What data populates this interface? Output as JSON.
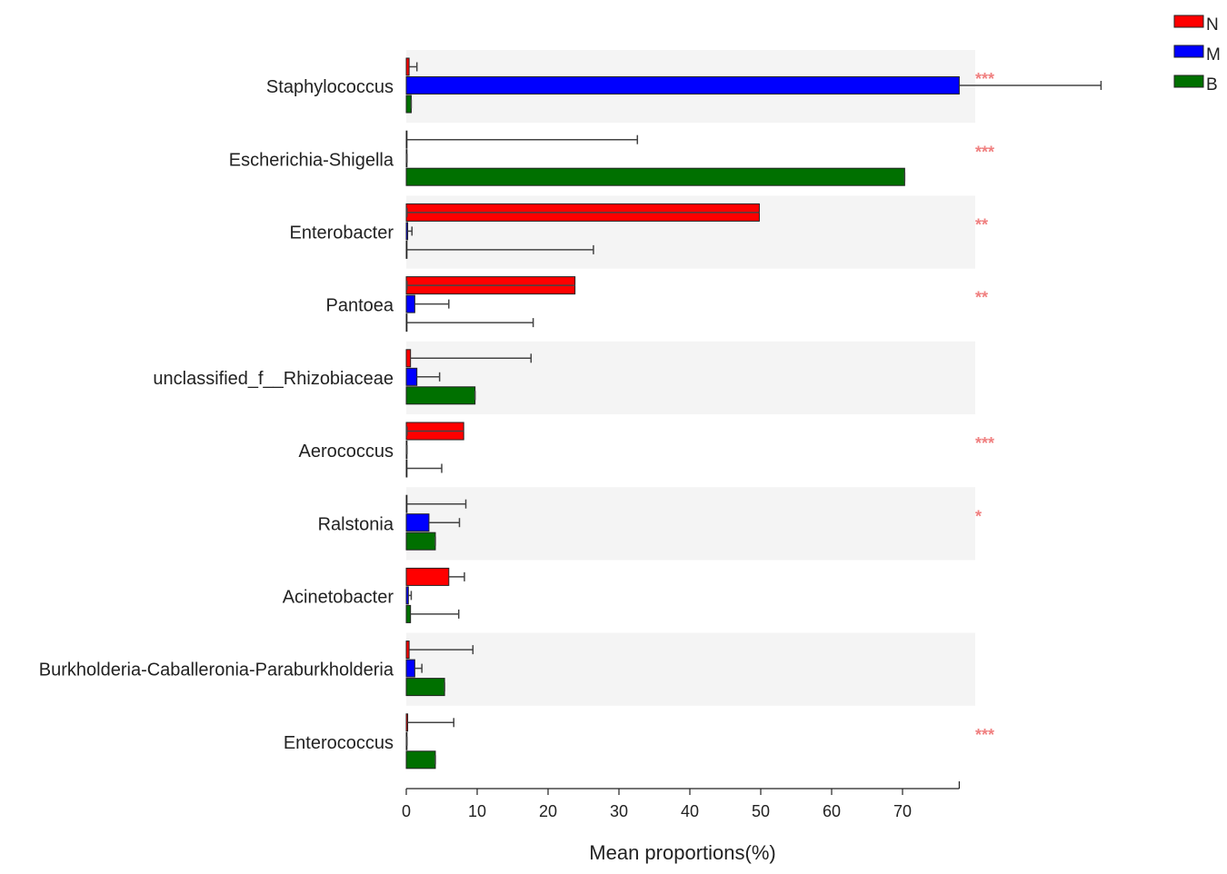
{
  "chart_data": {
    "type": "bar",
    "orientation": "horizontal",
    "xlabel": "Mean proportions(%)",
    "ylabel": "",
    "xlim": [
      0,
      78
    ],
    "xticks": [
      0,
      10,
      20,
      30,
      40,
      50,
      60,
      70
    ],
    "grid": false,
    "legend_position": "top-right",
    "categories": [
      "Staphylococcus",
      "Escherichia-Shigella",
      "Enterobacter",
      "Pantoea",
      "unclassified_f__Rhizobiaceae",
      "Aerococcus",
      "Ralstonia",
      "Acinetobacter",
      "Burkholderia-Caballeronia-Paraburkholderia",
      "Enterococcus"
    ],
    "series": [
      {
        "name": "N",
        "color": "#ff0000",
        "values": [
          0.4,
          0.1,
          49.8,
          23.8,
          0.6,
          8.1,
          0.1,
          6.0,
          0.4,
          0.2
        ],
        "errors": [
          1.5,
          32.6,
          0.1,
          0.1,
          17.6,
          0.1,
          8.4,
          8.2,
          9.4,
          6.7
        ]
      },
      {
        "name": "M",
        "color": "#0000ff",
        "values": [
          78.0,
          0.1,
          0.2,
          1.2,
          1.5,
          0.1,
          3.2,
          0.3,
          1.2,
          0.1
        ],
        "errors": [
          98.0,
          0.1,
          0.8,
          6.0,
          4.7,
          0.1,
          7.5,
          0.7,
          2.2,
          0.1
        ]
      },
      {
        "name": "B",
        "color": "#007000",
        "values": [
          0.7,
          70.3,
          0.1,
          0.1,
          9.7,
          0.1,
          4.1,
          0.6,
          5.4,
          4.1
        ],
        "errors": [
          0.7,
          70.3,
          26.4,
          17.9,
          9.7,
          5.0,
          4.1,
          7.4,
          5.4,
          4.1
        ]
      }
    ],
    "significance": [
      "***",
      "***",
      "**",
      "**",
      "",
      "***",
      "*",
      "",
      "",
      "***"
    ],
    "significance_color": "#f08080",
    "band_color": "#f4f4f4"
  }
}
